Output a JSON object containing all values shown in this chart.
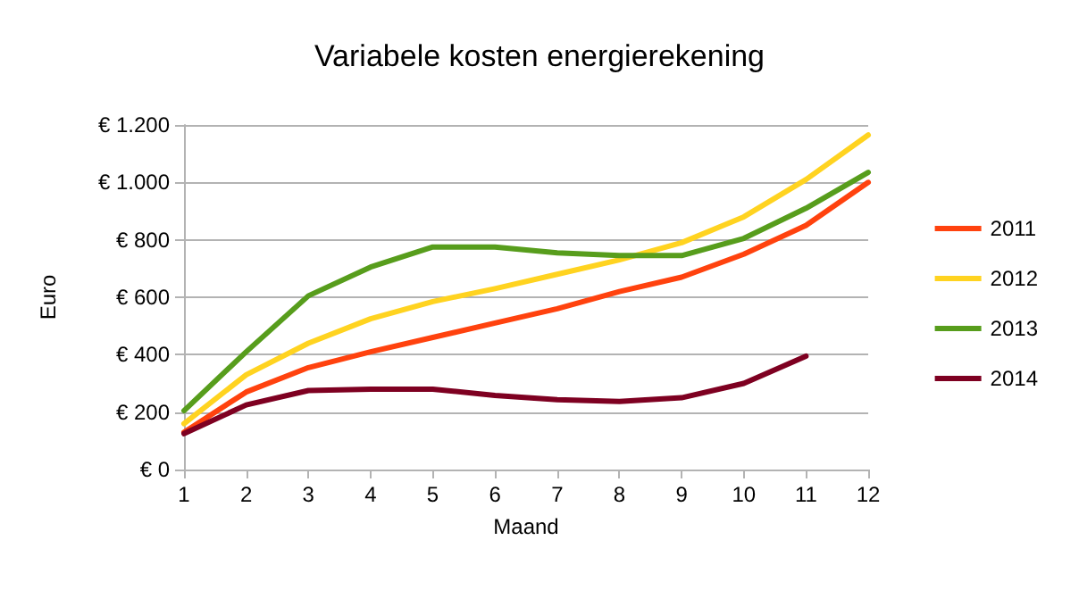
{
  "chart_data": {
    "type": "line",
    "title": "Variabele kosten energierekening",
    "xlabel": "Maand",
    "ylabel": "Euro",
    "x": [
      1,
      2,
      3,
      4,
      5,
      6,
      7,
      8,
      9,
      10,
      11,
      12
    ],
    "xlim": [
      1,
      12
    ],
    "xticks": [
      1,
      2,
      3,
      4,
      5,
      6,
      7,
      8,
      9,
      10,
      11,
      12
    ],
    "ylim": [
      0,
      1200
    ],
    "yticks": [
      {
        "value": 0,
        "label": "€ 0"
      },
      {
        "value": 200,
        "label": "€ 200"
      },
      {
        "value": 400,
        "label": "€ 400"
      },
      {
        "value": 600,
        "label": "€ 600"
      },
      {
        "value": 800,
        "label": "€ 800"
      },
      {
        "value": 1000,
        "label": "€ 1.000"
      },
      {
        "value": 1200,
        "label": "€ 1.200"
      }
    ],
    "grid": "y",
    "legend": "right",
    "marker": "none",
    "line_style": "solid",
    "series": [
      {
        "name": "2011",
        "color": "#ff420e",
        "values": [
          130,
          270,
          355,
          410,
          460,
          510,
          560,
          620,
          670,
          750,
          850,
          1000
        ]
      },
      {
        "name": "2012",
        "color": "#ffd320",
        "values": [
          160,
          330,
          440,
          525,
          585,
          630,
          680,
          730,
          790,
          880,
          1010,
          1165
        ]
      },
      {
        "name": "2013",
        "color": "#579d1c",
        "values": [
          205,
          410,
          605,
          705,
          775,
          775,
          755,
          745,
          745,
          805,
          910,
          1035
        ]
      },
      {
        "name": "2014",
        "color": "#7e0021",
        "values": [
          125,
          225,
          275,
          280,
          280,
          258,
          243,
          237,
          250,
          300,
          395,
          null
        ]
      }
    ]
  }
}
